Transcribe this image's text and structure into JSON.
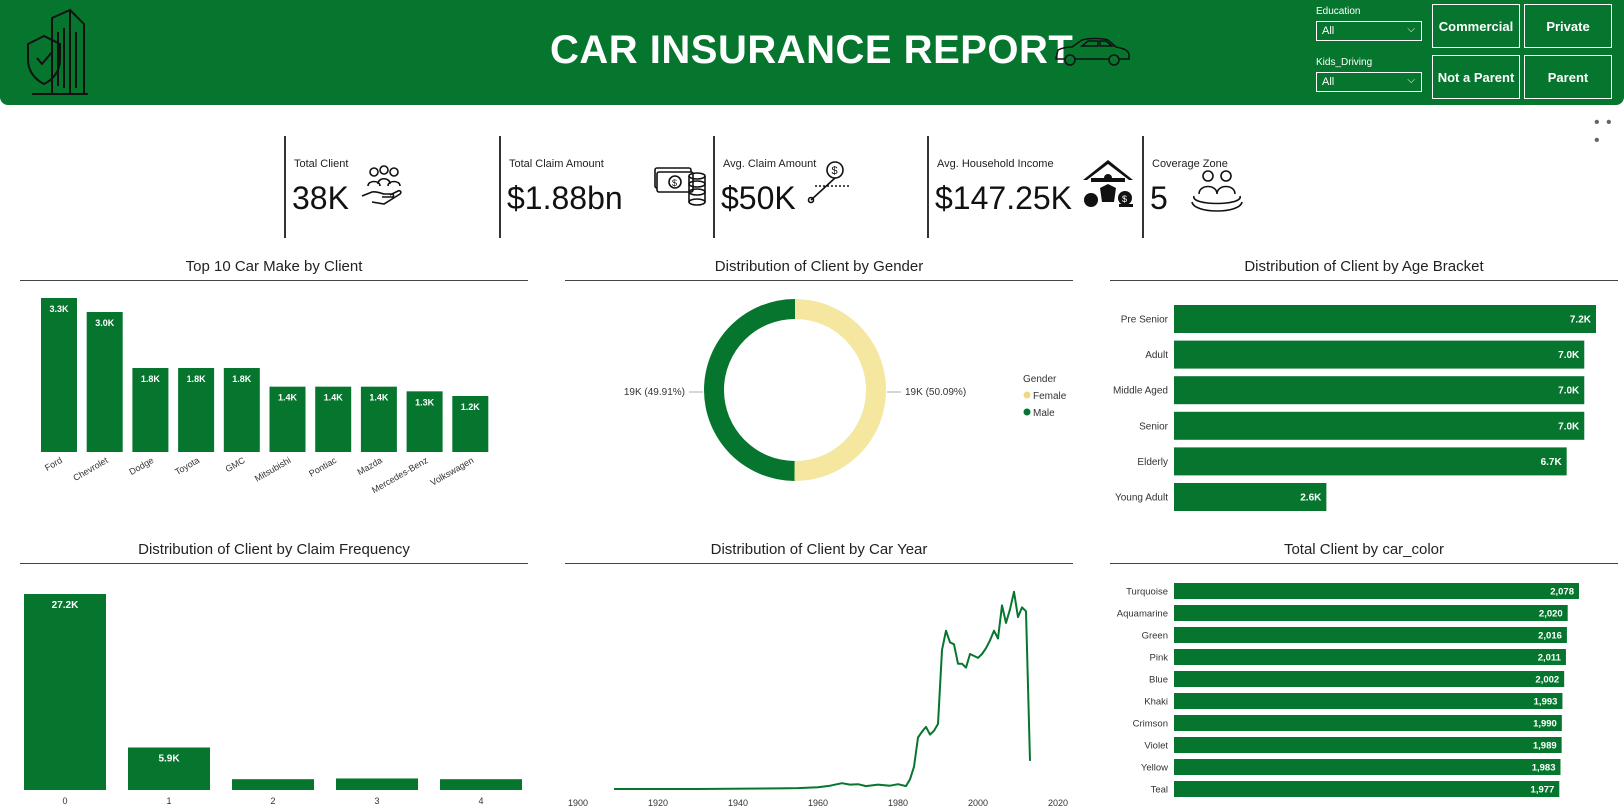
{
  "header": {
    "title": "CAR INSURANCE REPORT",
    "brand_color": "#06762f",
    "logo_icon": "building-shield-icon",
    "car_icon": "car-icon"
  },
  "slicers": {
    "education": {
      "label": "Education",
      "value": "All"
    },
    "kids_driving": {
      "label": "Kids_Driving",
      "value": "All"
    }
  },
  "buttons": {
    "commercial": "Commercial",
    "private": "Private",
    "not_a_parent": "Not a Parent",
    "parent": "Parent"
  },
  "more_menu": "• • •",
  "kpis": [
    {
      "label": "Total Client",
      "value": "38K",
      "icon": "people-hand-icon"
    },
    {
      "label": "Total Claim Amount",
      "value": "$1.88bn",
      "icon": "cash-coins-icon"
    },
    {
      "label": "Avg. Claim Amount",
      "value": "$50K",
      "icon": "dollar-average-icon"
    },
    {
      "label": "Avg. Household Income",
      "value": "$147.25K",
      "icon": "house-family-income-icon"
    },
    {
      "label": "Coverage Zone",
      "value": "5",
      "icon": "people-zone-icon"
    }
  ],
  "chart_data": [
    {
      "id": "car_make",
      "type": "bar",
      "title": "Top 10 Car Make by Client",
      "categories": [
        "Ford",
        "Chevrolet",
        "Dodge",
        "Toyota",
        "GMC",
        "Mitsubishi",
        "Pontiac",
        "Mazda",
        "Mercedes-Benz",
        "Volkswagen"
      ],
      "values": [
        3300,
        3000,
        1800,
        1800,
        1800,
        1400,
        1400,
        1400,
        1300,
        1200
      ],
      "labels": [
        "3.3K",
        "3.0K",
        "1.8K",
        "1.8K",
        "1.8K",
        "1.4K",
        "1.4K",
        "1.4K",
        "1.3K",
        "1.2K"
      ],
      "color": "#06762f"
    },
    {
      "id": "gender",
      "type": "pie",
      "title": "Distribution of Client by Gender",
      "legend_title": "Gender",
      "legend_position": "right",
      "slices": [
        {
          "name": "Female",
          "value": 50.09,
          "label": "19K (50.09%)",
          "color": "#f5e6a0"
        },
        {
          "name": "Male",
          "value": 49.91,
          "label": "19K (49.91%)",
          "color": "#06762f"
        }
      ]
    },
    {
      "id": "age_bracket",
      "type": "bar",
      "orientation": "horizontal",
      "title": "Distribution of Client by Age Bracket",
      "categories": [
        "Pre Senior",
        "Adult",
        "Middle Aged",
        "Senior",
        "Elderly",
        "Young Adult"
      ],
      "values": [
        7200,
        7000,
        7000,
        7000,
        6700,
        2600
      ],
      "labels": [
        "7.2K",
        "7.0K",
        "7.0K",
        "7.0K",
        "6.7K",
        "2.6K"
      ],
      "color": "#06762f"
    },
    {
      "id": "claim_freq",
      "type": "bar",
      "title": "Distribution of Client by Claim Frequency",
      "categories": [
        "0",
        "1",
        "2",
        "3",
        "4"
      ],
      "values": [
        27200,
        5900,
        1500,
        1600,
        1500
      ],
      "labels": [
        "27.2K",
        "5.9K",
        "",
        "",
        ""
      ],
      "color": "#06762f"
    },
    {
      "id": "car_year",
      "type": "line",
      "title": "Distribution of Client by Car Year",
      "x_ticks": [
        "1900",
        "1920",
        "1940",
        "1960",
        "1980",
        "2000",
        "2020"
      ],
      "xlim": [
        1900,
        2020
      ],
      "ylim": [
        0,
        1050
      ],
      "x": [
        1909,
        1930,
        1950,
        1955,
        1960,
        1963,
        1966,
        1968,
        1970,
        1972,
        1975,
        1978,
        1980,
        1982,
        1983,
        1984,
        1985,
        1986,
        1987,
        1988,
        1989,
        1990,
        1991,
        1992,
        1993,
        1994,
        1995,
        1996,
        1997,
        1998,
        1999,
        2000,
        2001,
        2002,
        2003,
        2004,
        2005,
        2006,
        2007,
        2008,
        2009,
        2010,
        2011,
        2012,
        2013
      ],
      "values": [
        5,
        5,
        8,
        10,
        14,
        22,
        35,
        28,
        30,
        20,
        28,
        22,
        30,
        20,
        55,
        120,
        270,
        300,
        325,
        285,
        305,
        340,
        720,
        820,
        760,
        750,
        650,
        650,
        630,
        700,
        690,
        680,
        700,
        730,
        770,
        820,
        780,
        950,
        860,
        930,
        1020,
        890,
        940,
        920,
        150
      ],
      "color": "#06762f"
    },
    {
      "id": "car_color",
      "type": "bar",
      "orientation": "horizontal",
      "title": "Total Client by car_color",
      "categories": [
        "Turquoise",
        "Aquamarine",
        "Green",
        "Pink",
        "Blue",
        "Khaki",
        "Crimson",
        "Violet",
        "Yellow",
        "Teal"
      ],
      "values": [
        2078,
        2020,
        2016,
        2011,
        2002,
        1993,
        1990,
        1989,
        1983,
        1977
      ],
      "labels": [
        "2,078",
        "2,020",
        "2,016",
        "2,011",
        "2,002",
        "1,993",
        "1,990",
        "1,989",
        "1,983",
        "1,977"
      ],
      "color": "#06762f"
    }
  ]
}
